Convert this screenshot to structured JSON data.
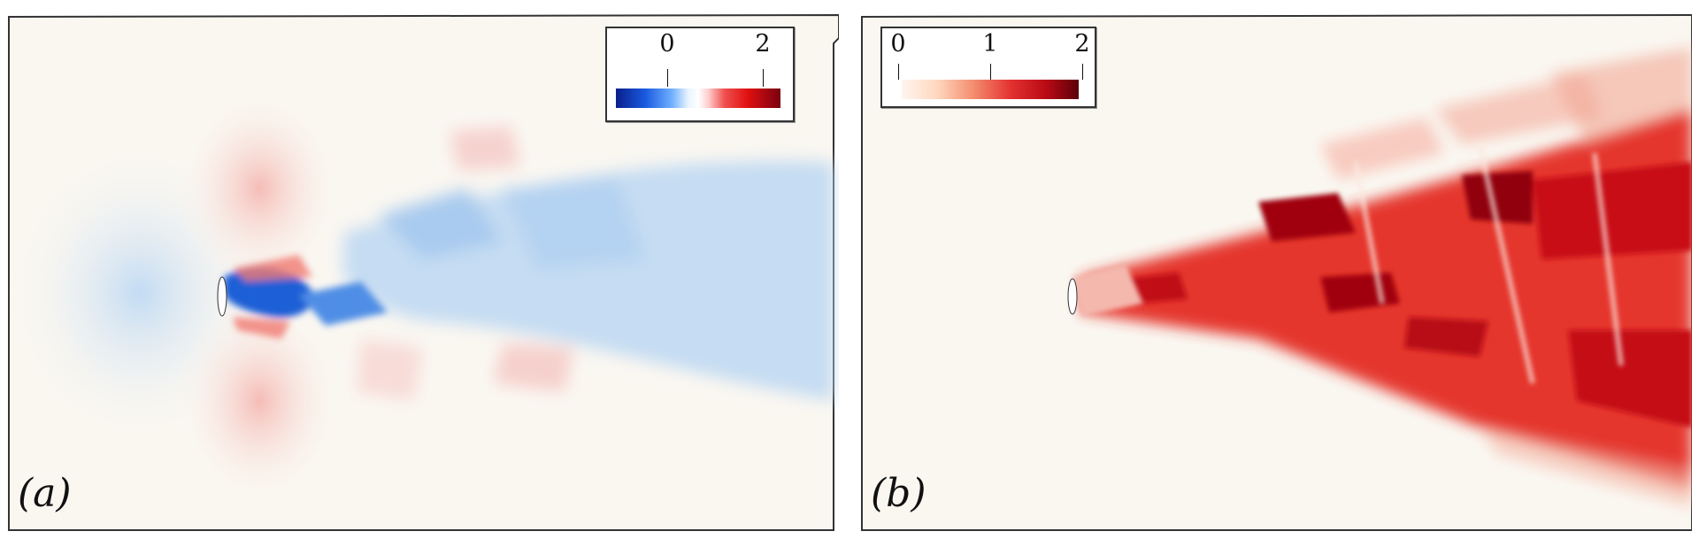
{
  "panels": [
    {
      "label": "(a)",
      "colorbar": {
        "ticks": [
          "0",
          "2"
        ],
        "colors": [
          "#0a1e8c",
          "#6fb0ff",
          "#ffffff",
          "#e01010",
          "#7a0010"
        ]
      }
    },
    {
      "label": "(b)",
      "colorbar": {
        "ticks": [
          "0",
          "1",
          "2"
        ],
        "colors": [
          "#fff6ef",
          "#f49070",
          "#e33030",
          "#5a000a"
        ]
      }
    }
  ],
  "colors": {
    "background_field": "#faf7f1",
    "border": "#333333"
  }
}
